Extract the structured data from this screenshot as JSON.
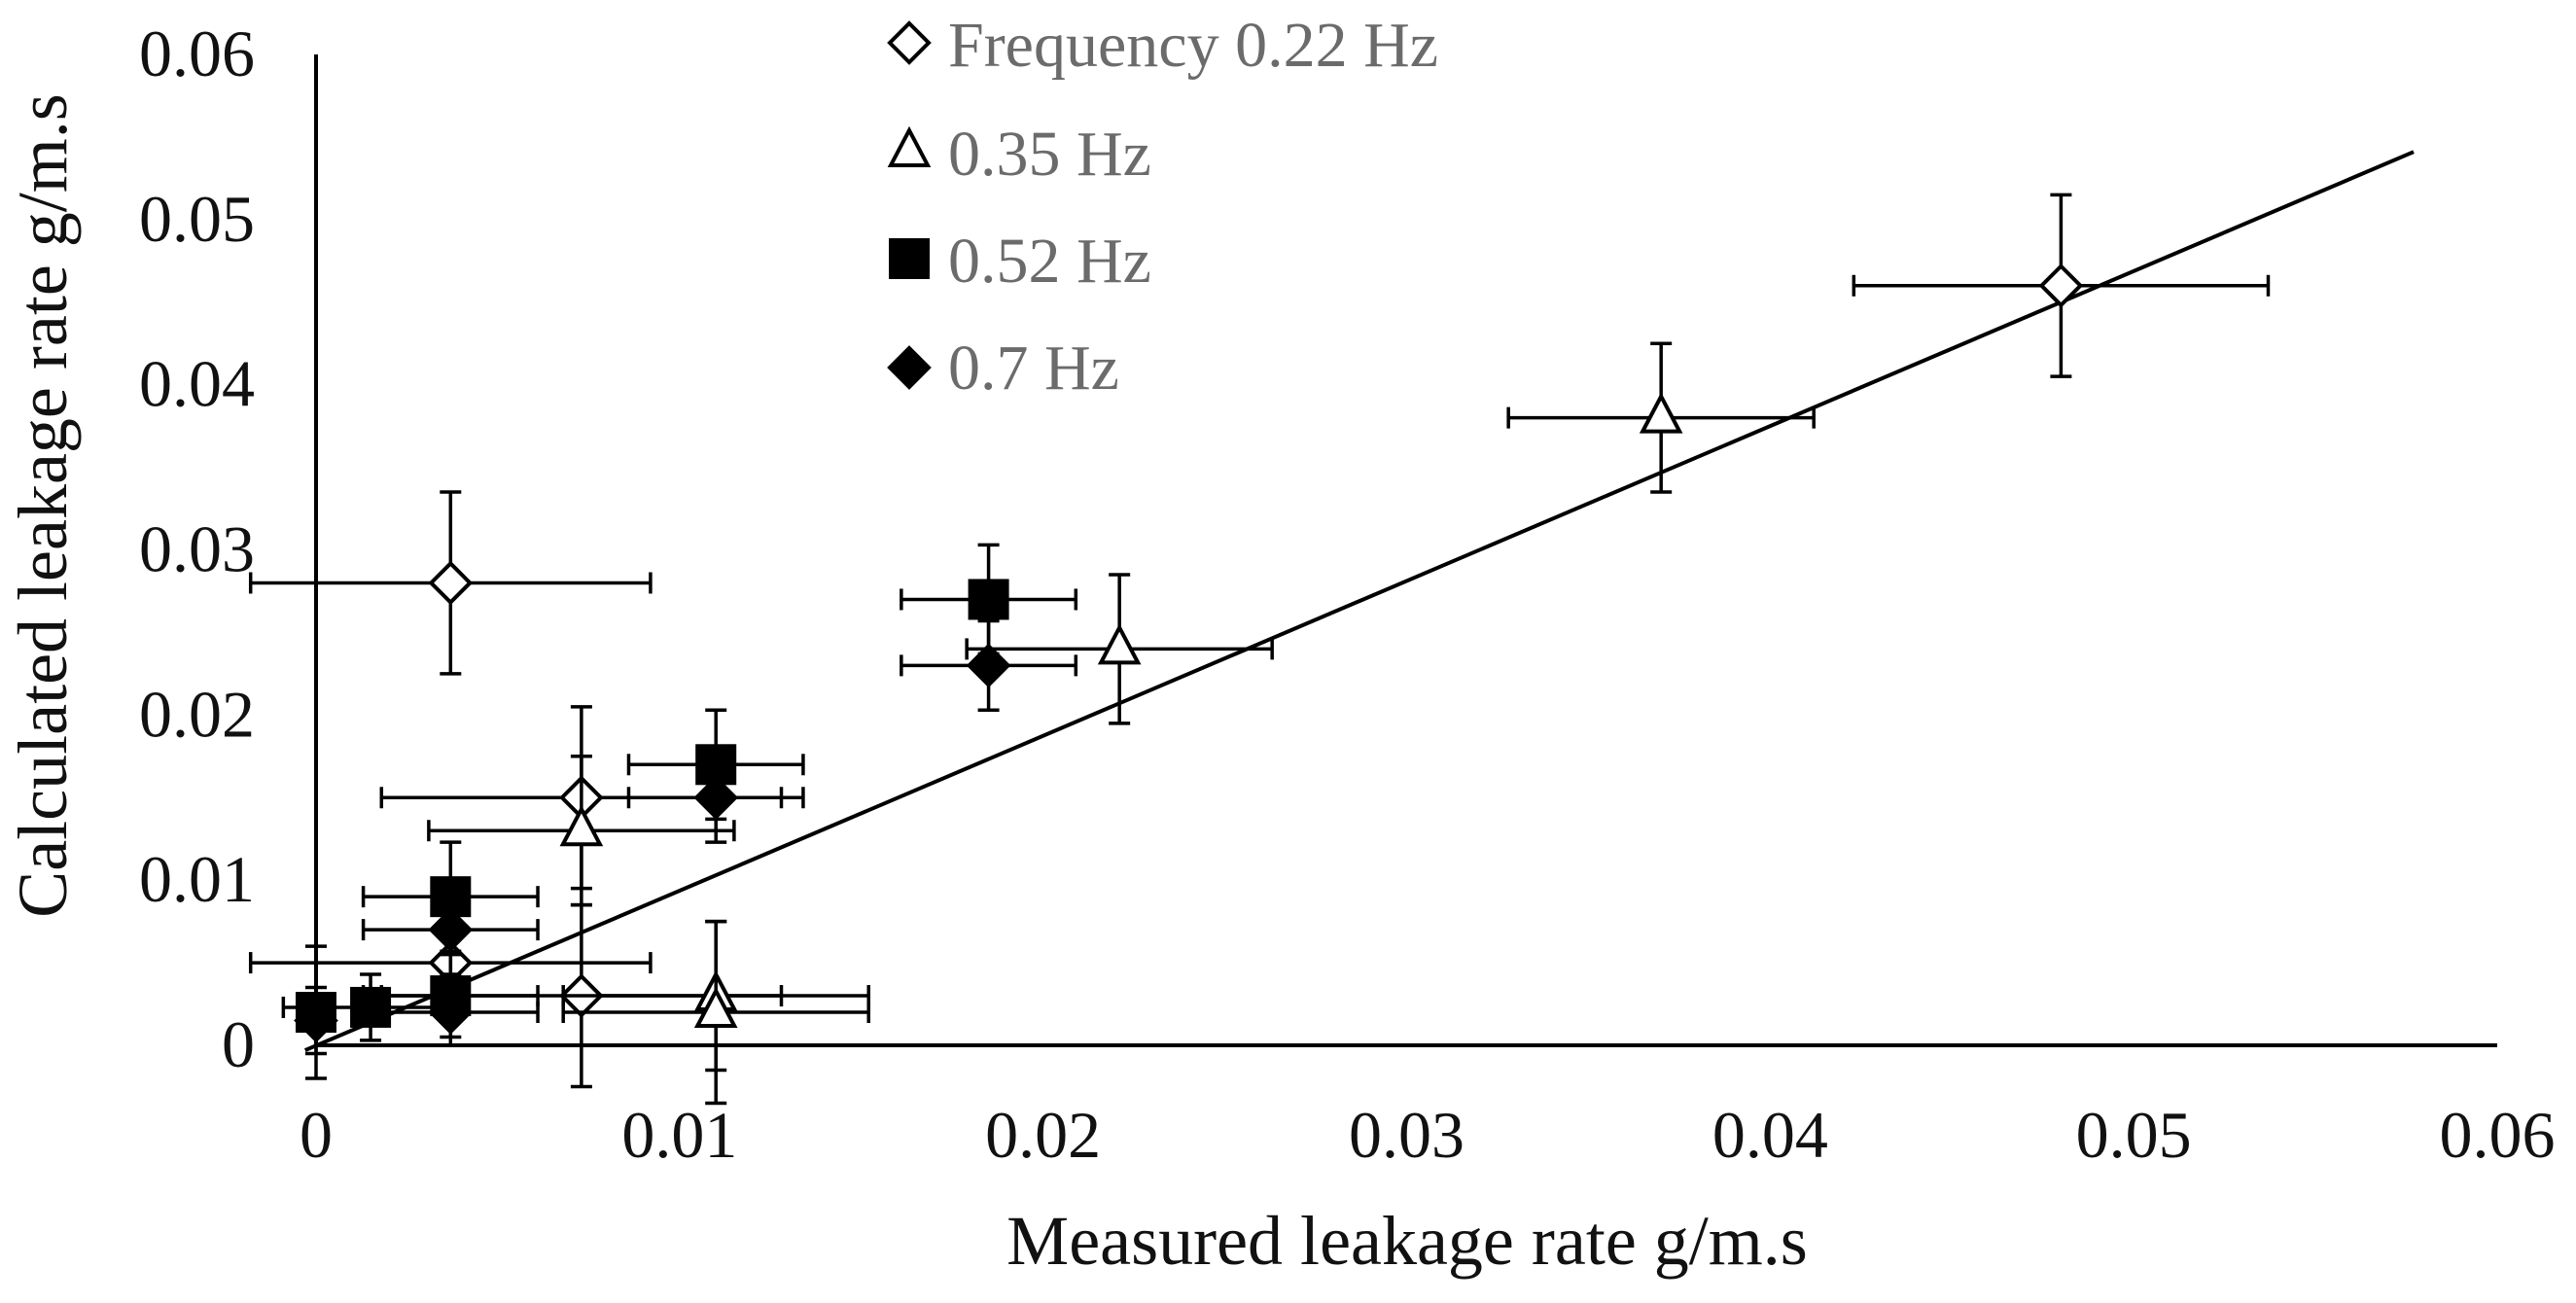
{
  "chart_data": {
    "type": "scatter",
    "title": "",
    "xlabel": "Measured leakage rate  g/m.s",
    "ylabel": "Calculated leakage rate  g/m.s",
    "xlim": [
      0,
      0.06
    ],
    "ylim": [
      0,
      0.06
    ],
    "xticks": [
      "0",
      "0.01",
      "0.02",
      "0.03",
      "0.04",
      "0.05",
      "0.06"
    ],
    "yticks": [
      "0",
      "0.01",
      "0.02",
      "0.03",
      "0.04",
      "0.05",
      "0.06"
    ],
    "legend_position": "top-center",
    "trendline": {
      "x": [
        -0.0003,
        0.0577
      ],
      "y": [
        -0.0003,
        0.0541
      ]
    },
    "series": [
      {
        "name": "Frequency 0.22 Hz",
        "marker": "diamond-open",
        "points": [
          {
            "x": 0.048,
            "y": 0.046,
            "xerr": 0.0057,
            "yerr": 0.0055
          },
          {
            "x": 0.0037,
            "y": 0.028,
            "xerr": 0.0055,
            "yerr": 0.0055
          },
          {
            "x": 0.0073,
            "y": 0.015,
            "xerr": 0.0055,
            "yerr": 0.0055
          },
          {
            "x": 0.0073,
            "y": 0.003,
            "xerr": 0.0055,
            "yerr": 0.0055
          },
          {
            "x": 0.0037,
            "y": 0.005,
            "xerr": 0.0055,
            "yerr": 0.0025
          }
        ]
      },
      {
        "name": "0.35 Hz",
        "marker": "triangle-open",
        "points": [
          {
            "x": 0.037,
            "y": 0.038,
            "xerr": 0.0042,
            "yerr": 0.0045
          },
          {
            "x": 0.0221,
            "y": 0.024,
            "xerr": 0.0042,
            "yerr": 0.0045
          },
          {
            "x": 0.0073,
            "y": 0.013,
            "xerr": 0.0042,
            "yerr": 0.0045
          },
          {
            "x": 0.011,
            "y": 0.003,
            "xerr": 0.0042,
            "yerr": 0.0045
          },
          {
            "x": 0.011,
            "y": 0.002,
            "xerr": 0.0042,
            "yerr": 0.0055
          }
        ]
      },
      {
        "name": "0.52 Hz",
        "marker": "square-filled",
        "points": [
          {
            "x": 0.0185,
            "y": 0.027,
            "xerr": 0.0024,
            "yerr": 0.0033
          },
          {
            "x": 0.011,
            "y": 0.017,
            "xerr": 0.0024,
            "yerr": 0.0033
          },
          {
            "x": 0.0037,
            "y": 0.009,
            "xerr": 0.0024,
            "yerr": 0.0033
          },
          {
            "x": 0.0037,
            "y": 0.003,
            "xerr": 0.0024,
            "yerr": 0.0025
          },
          {
            "x": 0.0015,
            "y": 0.0023,
            "xerr": 0.0024,
            "yerr": 0.002
          },
          {
            "x": 0.0,
            "y": 0.002,
            "xerr": 0.0005,
            "yerr": 0.004
          }
        ]
      },
      {
        "name": "0.7 Hz",
        "marker": "diamond-filled",
        "points": [
          {
            "x": 0.0185,
            "y": 0.023,
            "xerr": 0.0024,
            "yerr": 0.0027
          },
          {
            "x": 0.011,
            "y": 0.015,
            "xerr": 0.0024,
            "yerr": 0.0027
          },
          {
            "x": 0.0037,
            "y": 0.007,
            "xerr": 0.0024,
            "yerr": 0.0027
          },
          {
            "x": 0.0037,
            "y": 0.002,
            "xerr": 0.0024,
            "yerr": 0.002
          },
          {
            "x": 0.0,
            "y": 0.0015,
            "xerr": 0.0005,
            "yerr": 0.002
          }
        ]
      }
    ]
  }
}
